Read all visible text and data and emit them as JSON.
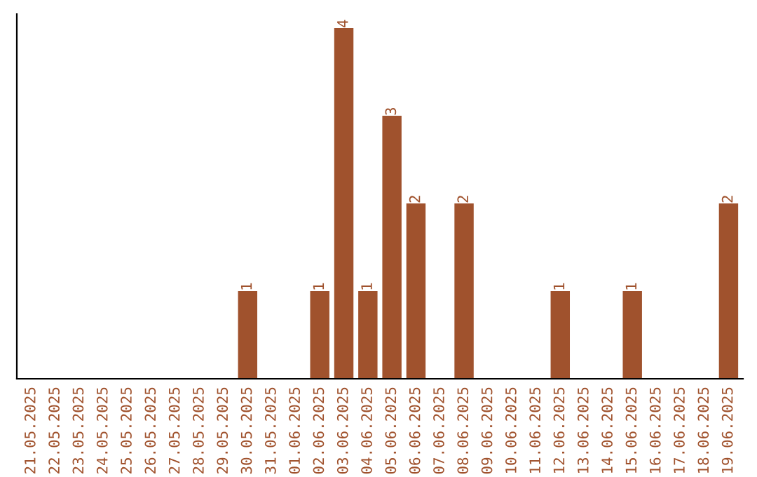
{
  "chart_data": {
    "type": "bar",
    "categories": [
      "21.05.2025",
      "22.05.2025",
      "23.05.2025",
      "24.05.2025",
      "25.05.2025",
      "26.05.2025",
      "27.05.2025",
      "28.05.2025",
      "29.05.2025",
      "30.05.2025",
      "31.05.2025",
      "01.06.2025",
      "02.06.2025",
      "03.06.2025",
      "04.06.2025",
      "05.06.2025",
      "06.06.2025",
      "07.06.2025",
      "08.06.2025",
      "09.06.2025",
      "10.06.2025",
      "11.06.2025",
      "12.06.2025",
      "13.06.2025",
      "14.06.2025",
      "15.06.2025",
      "16.06.2025",
      "17.06.2025",
      "18.06.2025",
      "19.06.2025"
    ],
    "values": [
      0,
      0,
      0,
      0,
      0,
      0,
      0,
      0,
      0,
      1,
      0,
      0,
      1,
      4,
      1,
      3,
      2,
      0,
      2,
      0,
      0,
      0,
      1,
      0,
      0,
      1,
      0,
      0,
      0,
      2
    ],
    "value_labels": [
      null,
      null,
      null,
      null,
      null,
      null,
      null,
      null,
      null,
      "1",
      null,
      null,
      "1",
      "4",
      "1",
      "3",
      "2",
      null,
      "2",
      null,
      null,
      null,
      "1",
      null,
      null,
      "1",
      null,
      null,
      null,
      "2"
    ],
    "color": "#a0522d",
    "ylim": [
      0,
      4.16
    ],
    "tick_labels": "x",
    "grid": false
  }
}
